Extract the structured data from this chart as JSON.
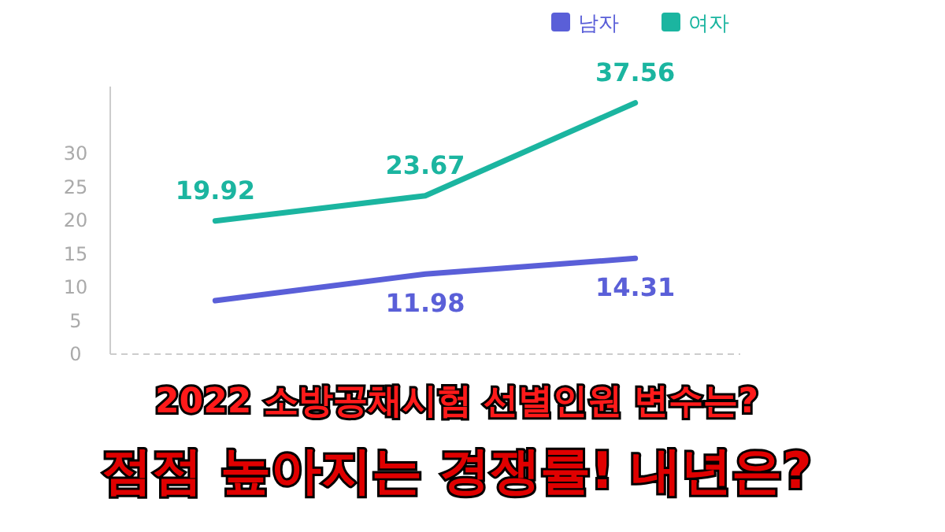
{
  "chart_data": {
    "type": "line",
    "categories": [
      null,
      null,
      null
    ],
    "series": [
      {
        "name": "남자",
        "color": "#5a5fd8",
        "values": [
          8,
          11.98,
          14.31
        ],
        "value_labels": [
          null,
          "11.98",
          "14.31"
        ]
      },
      {
        "name": "여자",
        "color": "#1bb5a0",
        "values": [
          19.92,
          23.67,
          37.56
        ],
        "value_labels": [
          "19.92",
          "23.67",
          "37.56"
        ]
      }
    ],
    "ylim": [
      0,
      40
    ],
    "yticks": [
      0,
      5,
      10,
      15,
      20,
      25,
      30
    ],
    "grid": false,
    "legend": "top right",
    "marker": "none",
    "annotations": [
      "2022 소방공채시험 선별인원 변수는?",
      "점점 높아지는 경쟁률! 내년은?"
    ]
  }
}
